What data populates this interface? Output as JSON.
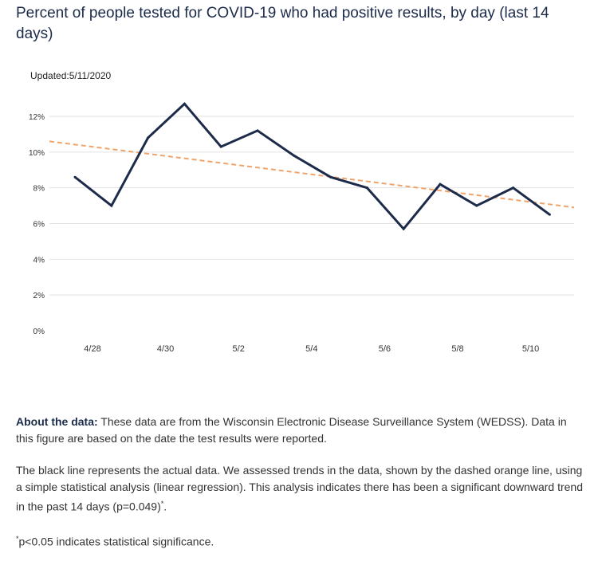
{
  "title": "Percent of people tested for COVID-19 who had positive results, by day (last 14 days)",
  "updated": "Updated:5/11/2020",
  "chart_data": {
    "type": "line",
    "title": "Percent of people tested for COVID-19 who had positive results, by day (last 14 days)",
    "xlabel": "",
    "ylabel": "",
    "x": [
      "4/28",
      "4/29",
      "4/30",
      "5/1",
      "5/2",
      "5/3",
      "5/4",
      "5/5",
      "5/6",
      "5/7",
      "5/8",
      "5/9",
      "5/10",
      "5/11"
    ],
    "x_tick_labels": [
      "4/28",
      "4/30",
      "5/2",
      "5/4",
      "5/6",
      "5/8",
      "5/10"
    ],
    "y_tick_labels": [
      "12%",
      "10%",
      "8%",
      "6%",
      "4%",
      "2%",
      "0%"
    ],
    "y_ticks": [
      12,
      10,
      8,
      6,
      4,
      2,
      0
    ],
    "ylim": [
      0,
      12
    ],
    "grid": true,
    "series": [
      {
        "name": "",
        "style": "solid",
        "color": "#1c2b4a",
        "values": [
          8.6,
          7.0,
          10.8,
          12.7,
          10.3,
          11.2,
          9.8,
          8.6,
          8.0,
          5.7,
          8.2,
          7.0,
          8.0,
          6.5
        ]
      },
      {
        "name": "",
        "style": "dashed",
        "color": "#f0a46a",
        "values_at_axis_ends": [
          10.6,
          6.9
        ]
      }
    ]
  },
  "notes": {
    "about_label": "About the data:",
    "about_text": " These data are from the Wisconsin Electronic Disease Surveillance System (WEDSS). Data in this figure are based on the date the test results were reported.",
    "trend_text": "The black line represents the actual data. We assessed trends in the data, shown by the dashed orange line, using a simple statistical analysis (linear regression). This analysis indicates there has been a significant downward trend in the past 14 days (p=0.049)",
    "trend_mark": "*",
    "trend_end": ".",
    "footnote_mark": "*",
    "footnote_text": "p<0.05 indicates statistical significance."
  }
}
